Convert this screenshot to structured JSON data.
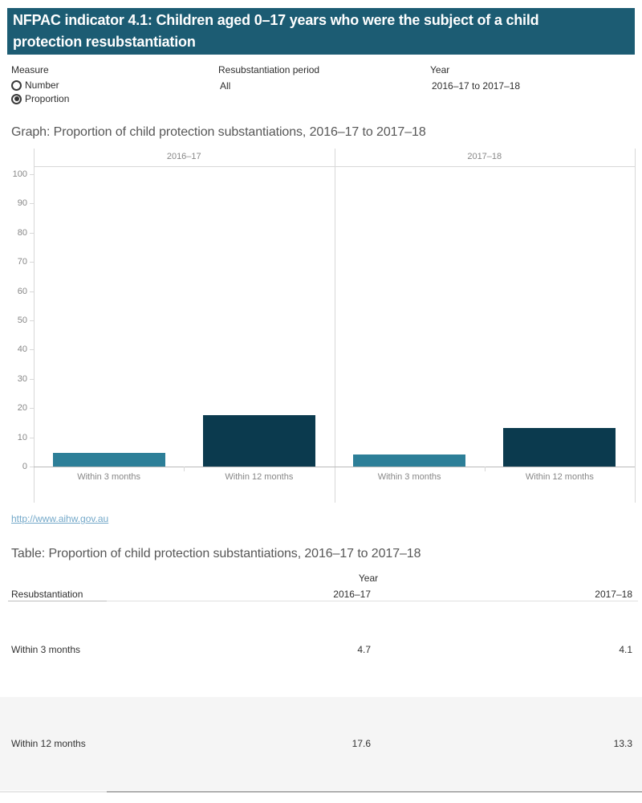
{
  "banner": {
    "title_line1": "NFPAC indicator 4.1: Children aged 0–17 years who were the subject of a child",
    "title_line2": "protection resubstantiation",
    "bg_color": "#1c5c73"
  },
  "filters": {
    "measure": {
      "label": "Measure",
      "options": [
        {
          "label": "Number",
          "selected": false
        },
        {
          "label": "Proportion",
          "selected": true
        }
      ]
    },
    "period": {
      "label": "Resubstantiation period",
      "value": "All"
    },
    "year": {
      "label": "Year",
      "value": "2016–17 to 2017–18"
    }
  },
  "graph_title": "Graph: Proportion of child protection substantiations, 2016–17 to 2017–18",
  "chart_data": {
    "type": "bar",
    "panels": [
      "2016–17",
      "2017–18"
    ],
    "categories": [
      "Within 3 months",
      "Within 12 months"
    ],
    "series": [
      {
        "name": "2016–17",
        "values": [
          4.7,
          17.6
        ]
      },
      {
        "name": "2017–18",
        "values": [
          4.1,
          13.3
        ]
      }
    ],
    "bar_colors": [
      "#2d7f98",
      "#0b3a4e"
    ],
    "ylim": [
      0,
      100
    ],
    "ytick_step": 10,
    "grid": false,
    "xlabel": "",
    "ylabel": ""
  },
  "link": {
    "text": "http://www.aihw.gov.au"
  },
  "table": {
    "title": "Table: Proportion of child protection substantiations, 2016–17 to 2017–18",
    "col_group": "Year",
    "row_header": "Resubstantiation",
    "columns": [
      "2016–17",
      "2017–18"
    ],
    "rows": [
      {
        "label": "Within 3 months",
        "values": [
          "4.7",
          "4.1"
        ]
      },
      {
        "label": "Within 12 months",
        "values": [
          "17.6",
          "13.3"
        ]
      }
    ]
  }
}
